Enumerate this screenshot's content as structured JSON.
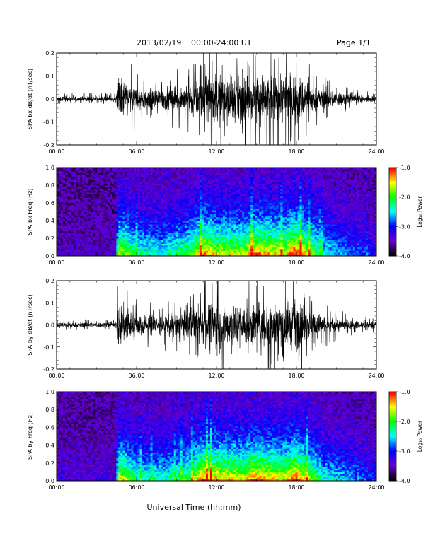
{
  "header": {
    "date_label": "2013/02/19",
    "range_label": "00:00-24:00 UT",
    "page_label": "Page 1/1"
  },
  "x_axis": {
    "title": "Universal Time (hh:mm)",
    "tick_labels": [
      "00:00",
      "06:00",
      "12:00",
      "18:00",
      "24:00"
    ]
  },
  "colorbar": {
    "title": "Log₁₀ Power",
    "tick_labels": [
      "-1.0",
      "-2.0",
      "-3.0",
      "-4.0"
    ],
    "colors": [
      "#ff0000",
      "#ffff00",
      "#00ff00",
      "#00ffff",
      "#0000ff",
      "#6a00d0",
      "#000000"
    ]
  },
  "chart_data": [
    {
      "type": "line",
      "name": "panel-bx-waveform",
      "ylabel": "SPA bx dB/dt (nT/sec)",
      "xlim": [
        0,
        24
      ],
      "ylim": [
        -0.2,
        0.2
      ],
      "y_tick_labels": [
        "0.2",
        "0.1",
        "0.0",
        "-0.1",
        "-0.2"
      ],
      "series": [
        {
          "x": [
            0,
            1,
            2,
            3,
            4,
            4.5,
            4.6,
            5,
            6,
            7,
            8,
            9,
            10,
            11,
            12,
            13,
            14,
            15,
            16,
            17,
            18,
            19,
            20,
            21,
            22,
            23,
            24
          ],
          "y": [
            0.02,
            0.02,
            0.02,
            0.02,
            0.02,
            0.02,
            0.2,
            0.15,
            0.1,
            0.08,
            0.09,
            0.1,
            0.13,
            0.18,
            0.2,
            0.18,
            0.17,
            0.2,
            0.19,
            0.2,
            0.2,
            0.12,
            0.08,
            0.06,
            0.04,
            0.03,
            0.03
          ]
        }
      ],
      "trace_color": "#000000"
    },
    {
      "type": "heatmap",
      "name": "panel-bx-spectrogram",
      "ylabel": "SPA bx Freq (Hz)",
      "xlim": [
        0,
        24
      ],
      "ylim": [
        0,
        1.0
      ],
      "y_tick_labels": [
        "1.0",
        "0.8",
        "0.6",
        "0.4",
        "0.2",
        "0.0"
      ],
      "z_range": [
        -4.0,
        -1.0
      ],
      "activity_hours": [
        0,
        2,
        4,
        4.5,
        4.6,
        6,
        8,
        10,
        11,
        12,
        14,
        15,
        16,
        17,
        18,
        20,
        22,
        24
      ],
      "activity_level": [
        0.05,
        0.05,
        0.06,
        0.06,
        0.75,
        0.5,
        0.45,
        0.6,
        0.85,
        0.75,
        0.7,
        0.85,
        0.8,
        0.75,
        0.95,
        0.45,
        0.3,
        0.2
      ]
    },
    {
      "type": "line",
      "name": "panel-by-waveform",
      "ylabel": "SPA by dB/dt (nT/sec)",
      "xlim": [
        0,
        24
      ],
      "ylim": [
        -0.2,
        0.2
      ],
      "y_tick_labels": [
        "0.2",
        "0.1",
        "0.0",
        "-0.1",
        "-0.2"
      ],
      "series": [
        {
          "x": [
            0,
            1,
            2,
            3,
            4,
            4.5,
            4.6,
            5,
            6,
            7,
            8,
            9,
            10,
            11,
            12,
            13,
            14,
            15,
            16,
            17,
            18,
            19,
            20,
            21,
            22,
            23,
            24
          ],
          "y": [
            0.02,
            0.02,
            0.02,
            0.02,
            0.02,
            0.02,
            0.2,
            0.16,
            0.1,
            0.08,
            0.09,
            0.1,
            0.13,
            0.18,
            0.2,
            0.17,
            0.17,
            0.19,
            0.18,
            0.19,
            0.2,
            0.12,
            0.08,
            0.06,
            0.04,
            0.03,
            0.03
          ]
        }
      ],
      "trace_color": "#000000"
    },
    {
      "type": "heatmap",
      "name": "panel-by-spectrogram",
      "ylabel": "SPA by Freq (Hz)",
      "xlim": [
        0,
        24
      ],
      "ylim": [
        0,
        1.0
      ],
      "y_tick_labels": [
        "1.0",
        "0.8",
        "0.6",
        "0.4",
        "0.2",
        "0.0"
      ],
      "z_range": [
        -4.0,
        -1.0
      ],
      "activity_hours": [
        0,
        2,
        4,
        4.5,
        4.6,
        6,
        8,
        10,
        11,
        12,
        14,
        15,
        16,
        17,
        18,
        20,
        22,
        24
      ],
      "activity_level": [
        0.1,
        0.1,
        0.1,
        0.1,
        0.75,
        0.5,
        0.45,
        0.6,
        0.85,
        0.8,
        0.75,
        0.85,
        0.8,
        0.75,
        0.9,
        0.45,
        0.35,
        0.2
      ]
    }
  ]
}
